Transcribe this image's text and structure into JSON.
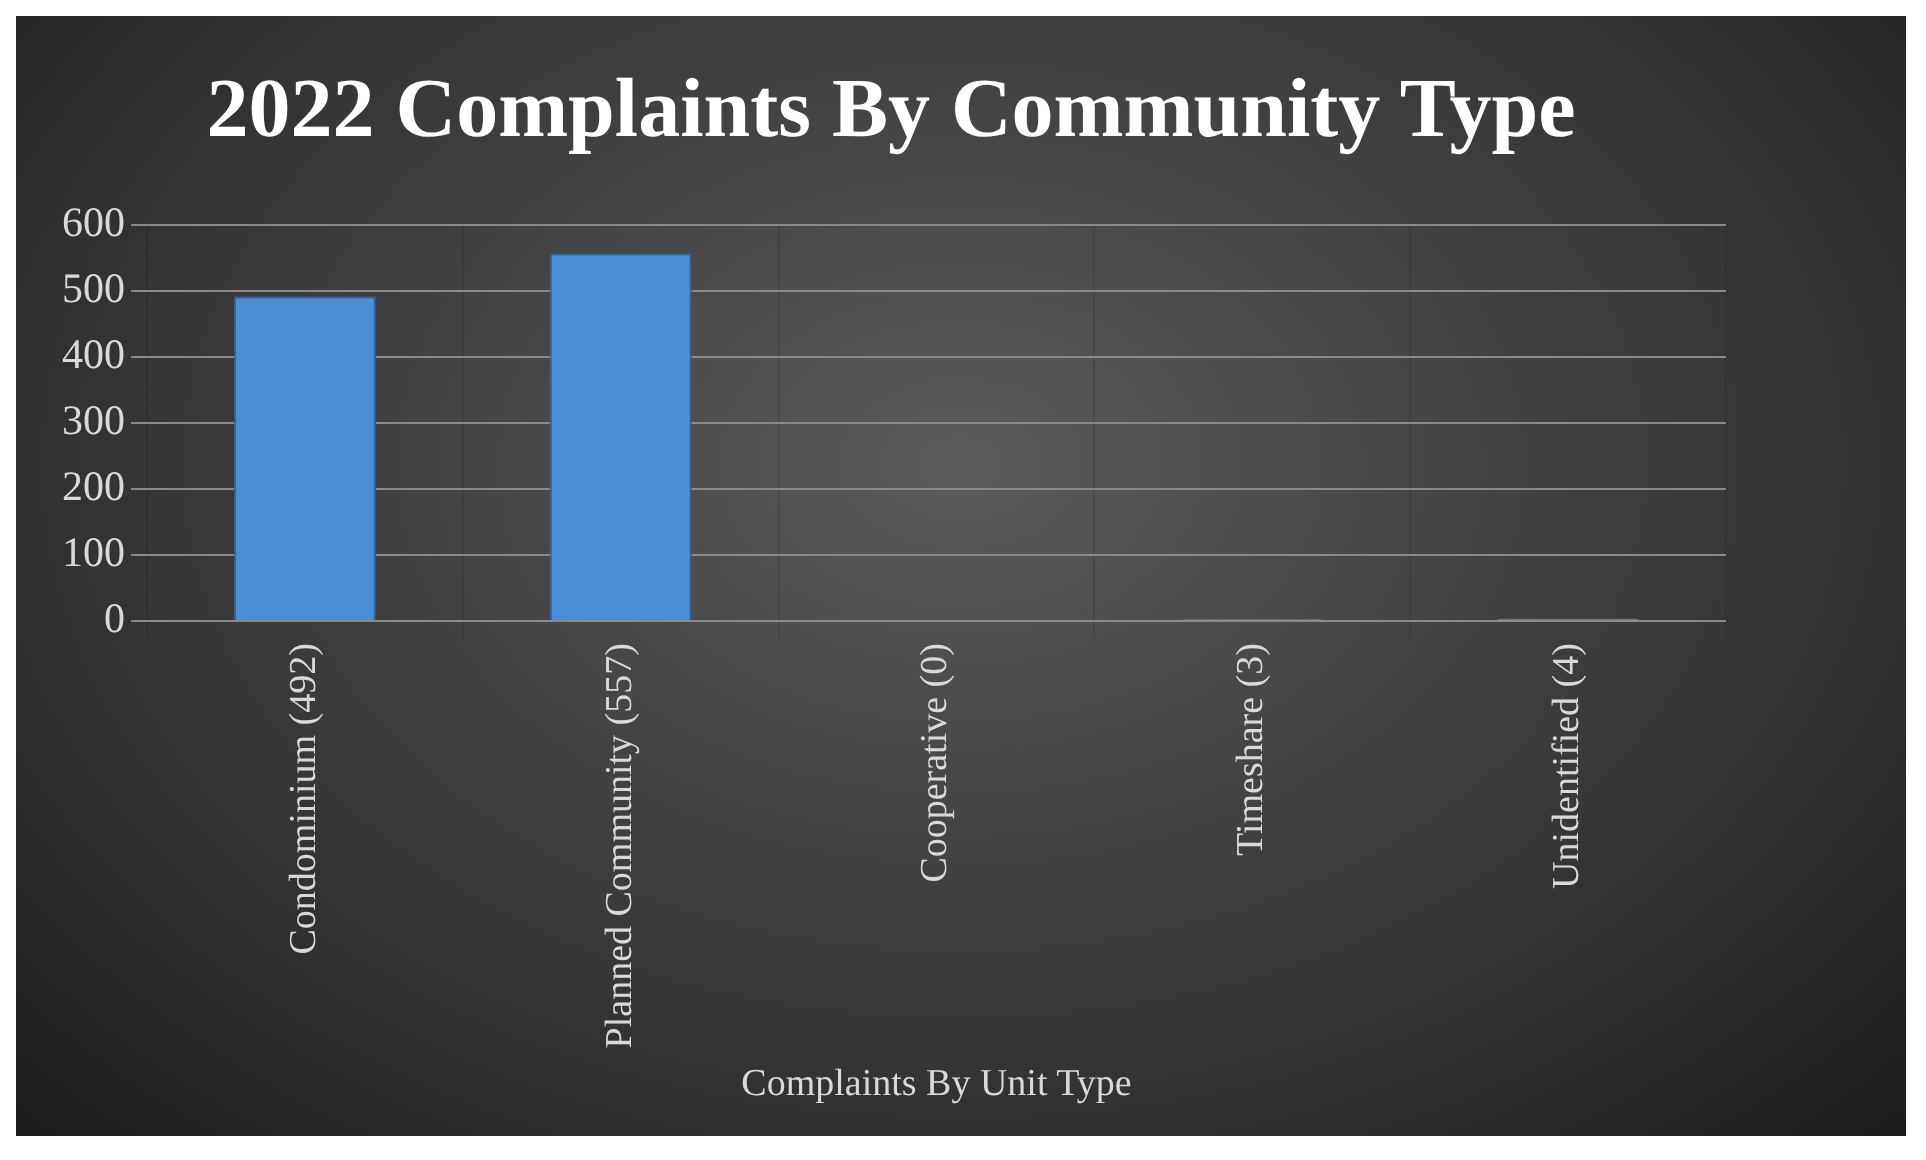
{
  "chart_data": {
    "type": "bar",
    "title": "2022 Complaints By Community Type",
    "xlabel": "Complaints By Unit Type",
    "categories": [
      "Condominium (492)",
      "Planned Community (557)",
      "Cooperative (0)",
      "Timeshare (3)",
      "Unidentified (4)"
    ],
    "values": [
      492,
      557,
      0,
      3,
      4
    ],
    "color": "#4a8fd6",
    "ylim": [
      0,
      600
    ],
    "yticks": [
      0,
      100,
      200,
      300,
      400,
      500,
      600
    ],
    "grid": true,
    "legend": false
  }
}
